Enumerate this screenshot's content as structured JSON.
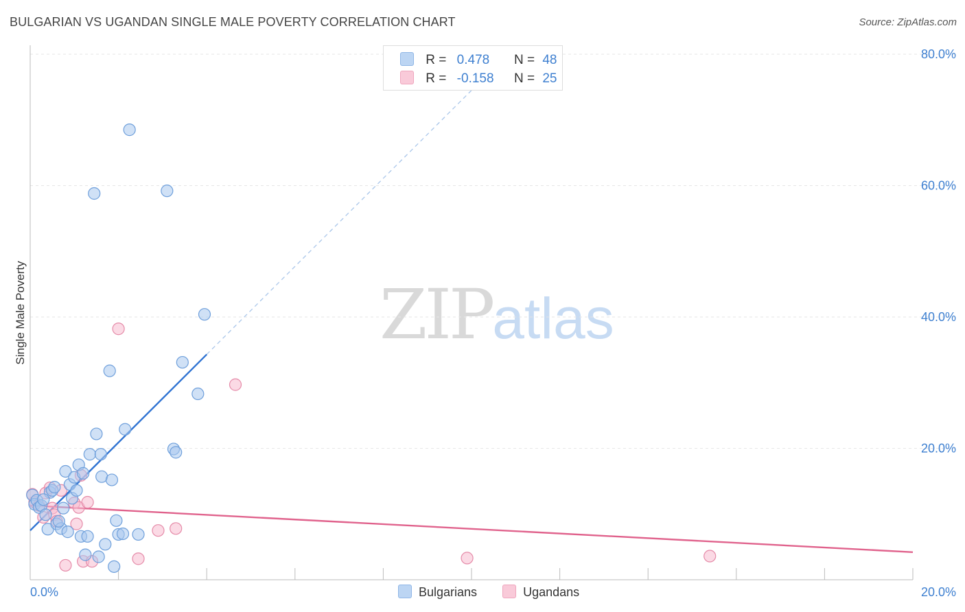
{
  "header": {
    "title": "BULGARIAN VS UGANDAN SINGLE MALE POVERTY CORRELATION CHART",
    "source": "Source: ZipAtlas.com"
  },
  "watermark": {
    "part1": "ZIP",
    "part2": "atlas"
  },
  "legend": {
    "rows": [
      {
        "r_label": "R =",
        "r_value": "0.478",
        "n_label": "N =",
        "n_value": "48"
      },
      {
        "r_label": "R =",
        "r_value": "-0.158",
        "n_label": "N =",
        "n_value": "25"
      }
    ]
  },
  "bottom_legend": {
    "series1": "Bulgarians",
    "series2": "Ugandans"
  },
  "colors": {
    "blue": "#a9c8ef",
    "blue_line": "#2f73d2",
    "pink": "#f7bcd0",
    "pink_line": "#e0628c",
    "accent": "#3d7fd0"
  },
  "chart_data": {
    "type": "scatter",
    "title": "BULGARIAN VS UGANDAN SINGLE MALE POVERTY CORRELATION CHART",
    "xlabel": "",
    "ylabel": "Single Male Poverty",
    "xlim": [
      0,
      20
    ],
    "ylim": [
      0,
      80
    ],
    "x_tick_labels": [
      "0.0%",
      "20.0%"
    ],
    "y_tick_labels": [
      "20.0%",
      "40.0%",
      "60.0%",
      "80.0%"
    ],
    "y_ticks": [
      20,
      40,
      60,
      80
    ],
    "series": [
      {
        "name": "Bulgarians",
        "color": "#a9c8ef",
        "stroke": "#6e9fdb",
        "points": [
          [
            0.05,
            12.9
          ],
          [
            0.1,
            11.5
          ],
          [
            0.15,
            12.1
          ],
          [
            0.2,
            11.0
          ],
          [
            0.25,
            11.3
          ],
          [
            0.35,
            9.9
          ],
          [
            0.4,
            7.7
          ],
          [
            0.45,
            13.3
          ],
          [
            0.5,
            13.6
          ],
          [
            0.55,
            14.1
          ],
          [
            0.6,
            8.5
          ],
          [
            0.7,
            7.8
          ],
          [
            0.75,
            10.9
          ],
          [
            0.8,
            16.5
          ],
          [
            0.85,
            7.3
          ],
          [
            0.9,
            14.5
          ],
          [
            0.95,
            12.4
          ],
          [
            1.0,
            15.6
          ],
          [
            1.05,
            13.6
          ],
          [
            1.1,
            17.5
          ],
          [
            1.15,
            6.6
          ],
          [
            1.2,
            16.2
          ],
          [
            1.25,
            3.8
          ],
          [
            1.3,
            6.6
          ],
          [
            1.35,
            19.1
          ],
          [
            1.45,
            58.8
          ],
          [
            1.5,
            22.2
          ],
          [
            1.55,
            3.5
          ],
          [
            1.6,
            19.1
          ],
          [
            1.62,
            15.7
          ],
          [
            1.7,
            5.4
          ],
          [
            1.8,
            31.8
          ],
          [
            1.85,
            15.2
          ],
          [
            1.9,
            2.0
          ],
          [
            1.95,
            9.0
          ],
          [
            2.0,
            6.9
          ],
          [
            2.1,
            7.0
          ],
          [
            2.15,
            22.9
          ],
          [
            2.25,
            68.5
          ],
          [
            2.45,
            6.9
          ],
          [
            3.1,
            59.2
          ],
          [
            3.25,
            19.9
          ],
          [
            3.3,
            19.4
          ],
          [
            3.45,
            33.1
          ],
          [
            3.8,
            28.3
          ],
          [
            3.95,
            40.4
          ],
          [
            0.3,
            12.2
          ],
          [
            0.65,
            8.9
          ]
        ]
      },
      {
        "name": "Ugandans",
        "color": "#f7bcd0",
        "stroke": "#e58aa8",
        "points": [
          [
            0.05,
            13.0
          ],
          [
            0.1,
            11.8
          ],
          [
            0.2,
            11.3
          ],
          [
            0.3,
            9.5
          ],
          [
            0.35,
            13.2
          ],
          [
            0.45,
            14.0
          ],
          [
            0.5,
            10.9
          ],
          [
            0.55,
            9.9
          ],
          [
            0.6,
            8.9
          ],
          [
            0.7,
            13.6
          ],
          [
            0.8,
            2.2
          ],
          [
            1.0,
            11.7
          ],
          [
            1.05,
            8.5
          ],
          [
            1.1,
            11.0
          ],
          [
            1.15,
            15.9
          ],
          [
            1.2,
            2.8
          ],
          [
            1.3,
            11.8
          ],
          [
            1.4,
            2.8
          ],
          [
            2.0,
            38.2
          ],
          [
            2.45,
            3.2
          ],
          [
            2.9,
            7.5
          ],
          [
            3.3,
            7.8
          ],
          [
            4.65,
            29.7
          ],
          [
            9.9,
            3.3
          ],
          [
            15.4,
            3.6
          ]
        ]
      }
    ],
    "trendlines": [
      {
        "series": "Bulgarians",
        "x_start": 0,
        "y_start": 7.5,
        "x_solid_end": 4.0,
        "x_dashed_end": 10.5,
        "slope": 6.7
      },
      {
        "series": "Ugandans",
        "x_start": 0,
        "y_start": 11.3,
        "x_end": 20,
        "y_end": 4.2
      }
    ]
  }
}
